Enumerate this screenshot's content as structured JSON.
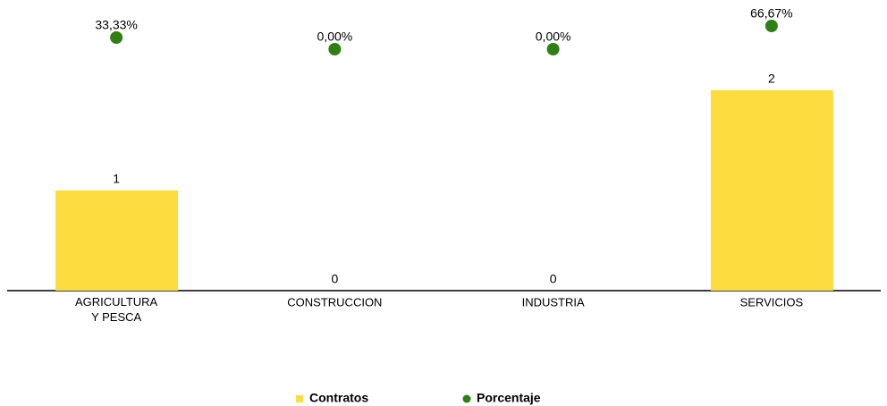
{
  "chart_data": {
    "type": "bar",
    "categories": [
      "AGRICULTURA Y PESCA",
      "CONSTRUCCION",
      "INDUSTRIA",
      "SERVICIOS"
    ],
    "series": [
      {
        "name": "Contratos",
        "type": "bar",
        "color": "#fddc3f",
        "values": [
          1,
          0,
          0,
          2
        ]
      },
      {
        "name": "Porcentaje",
        "type": "scatter",
        "axis": "y2",
        "color": "#2f7f12",
        "values": [
          33.33,
          0,
          0,
          66.67
        ],
        "value_labels": [
          "33,33%",
          "0,00%",
          "0,00%",
          "66,67%"
        ]
      }
    ],
    "ylim": [
      0,
      2.9
    ],
    "y2lim": [
      -692,
      141
    ],
    "legend": "bottom"
  }
}
